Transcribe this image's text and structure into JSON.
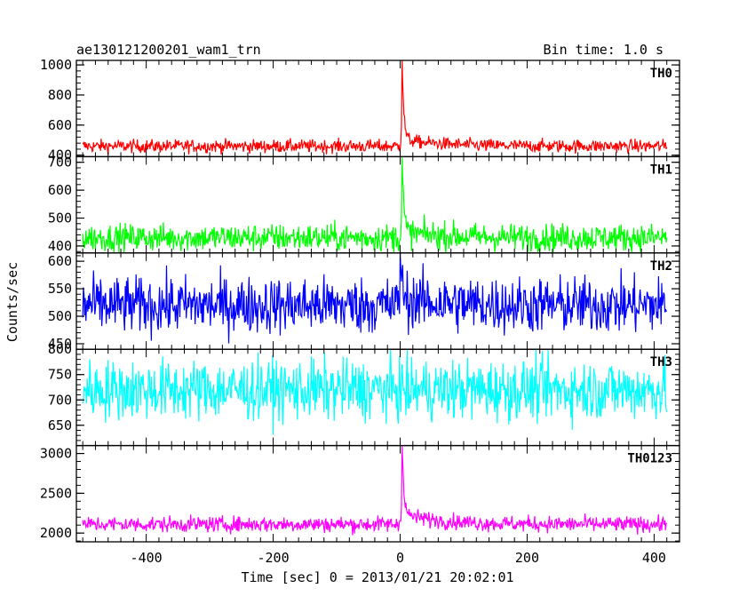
{
  "header": {
    "left_title": "ae130121200201_wam1_trn",
    "right_title": "Bin time: 1.0 s"
  },
  "axes": {
    "xlabel": "Time [sec] 0 = 2013/01/21 20:02:01",
    "ylabel": "Counts/sec"
  },
  "chart_data": {
    "type": "line",
    "x_range": [
      -510,
      440
    ],
    "x_ticks": [
      -400,
      -200,
      0,
      200,
      400
    ],
    "x_data_range": [
      -500,
      420
    ],
    "bin_time": 1.0,
    "panels": [
      {
        "name": "TH0",
        "color": "#ff0000",
        "ylim": [
          390,
          1030
        ],
        "yticks": [
          400,
          600,
          800,
          1000
        ],
        "baseline": 460,
        "noise": 22,
        "peak": 1030,
        "peak_time": 3,
        "post_tail": 45
      },
      {
        "name": "TH1",
        "color": "#00ff00",
        "ylim": [
          375,
          720
        ],
        "yticks": [
          400,
          500,
          600,
          700
        ],
        "baseline": 430,
        "noise": 25,
        "peak": 710,
        "peak_time": 3,
        "post_tail": 20
      },
      {
        "name": "TH2",
        "color": "#0000ff",
        "ylim": [
          440,
          615
        ],
        "yticks": [
          450,
          500,
          550,
          600
        ],
        "baseline": 520,
        "noise": 26,
        "peak": 612,
        "peak_time": 0,
        "post_tail": 12
      },
      {
        "name": "TH3",
        "color": "#00ffff",
        "ylim": [
          610,
          800
        ],
        "yticks": [
          650,
          700,
          750,
          800
        ],
        "baseline": 720,
        "noise": 30,
        "peak": 0,
        "peak_time": 0,
        "post_tail": 0
      },
      {
        "name": "TH0123",
        "color": "#ff00ff",
        "ylim": [
          1890,
          3100
        ],
        "yticks": [
          2000,
          2500,
          3000
        ],
        "baseline": 2110,
        "noise": 50,
        "peak": 3100,
        "peak_time": 3,
        "post_tail": 130
      }
    ]
  }
}
